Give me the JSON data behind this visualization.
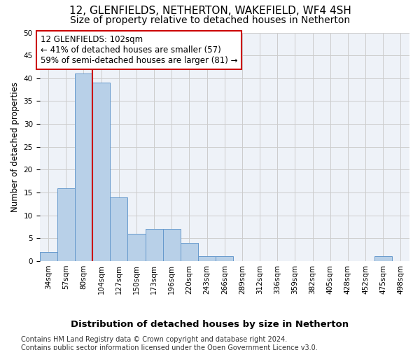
{
  "title1": "12, GLENFIELDS, NETHERTON, WAKEFIELD, WF4 4SH",
  "title2": "Size of property relative to detached houses in Netherton",
  "xlabel": "Distribution of detached houses by size in Netherton",
  "ylabel": "Number of detached properties",
  "bin_labels": [
    "34sqm",
    "57sqm",
    "80sqm",
    "104sqm",
    "127sqm",
    "150sqm",
    "173sqm",
    "196sqm",
    "220sqm",
    "243sqm",
    "266sqm",
    "289sqm",
    "312sqm",
    "336sqm",
    "359sqm",
    "382sqm",
    "405sqm",
    "428sqm",
    "452sqm",
    "475sqm",
    "498sqm"
  ],
  "bar_values": [
    2,
    16,
    41,
    39,
    14,
    6,
    7,
    7,
    4,
    1,
    1,
    0,
    0,
    0,
    0,
    0,
    0,
    0,
    0,
    1,
    0
  ],
  "bar_color": "#b8d0e8",
  "bar_edge_color": "#6699cc",
  "vline_x": 3.0,
  "vline_color": "#cc0000",
  "annotation_text": "12 GLENFIELDS: 102sqm\n← 41% of detached houses are smaller (57)\n59% of semi-detached houses are larger (81) →",
  "annotation_box_color": "#ffffff",
  "annotation_border_color": "#cc0000",
  "ylim": [
    0,
    50
  ],
  "yticks": [
    0,
    5,
    10,
    15,
    20,
    25,
    30,
    35,
    40,
    45,
    50
  ],
  "grid_color": "#cccccc",
  "bg_color": "#eef2f8",
  "footer_text": "Contains HM Land Registry data © Crown copyright and database right 2024.\nContains public sector information licensed under the Open Government Licence v3.0.",
  "title1_fontsize": 11,
  "title2_fontsize": 10,
  "xlabel_fontsize": 9.5,
  "ylabel_fontsize": 8.5,
  "tick_fontsize": 7.5,
  "annotation_fontsize": 8.5,
  "footer_fontsize": 7
}
